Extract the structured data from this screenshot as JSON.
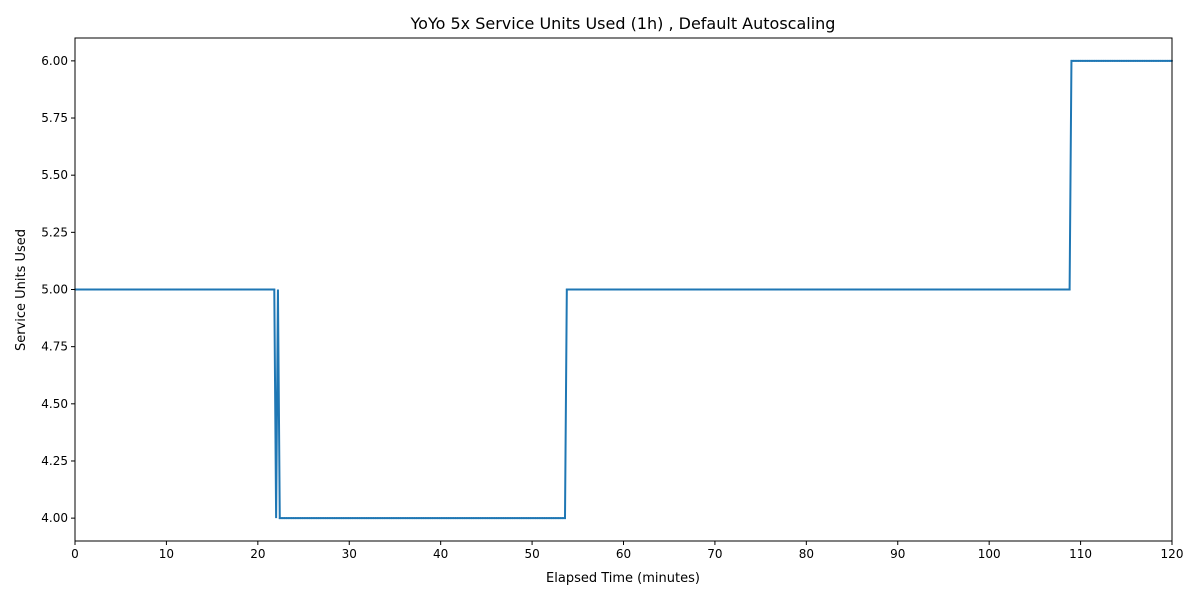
{
  "chart_data": {
    "type": "line",
    "title": "YoYo 5x Service Units Used (1h) , Default Autoscaling",
    "xlabel": "Elapsed Time (minutes)",
    "ylabel": "Service Units Used",
    "xlim": [
      0,
      120
    ],
    "ylim": [
      3.9,
      6.1
    ],
    "xticks": [
      0,
      10,
      20,
      30,
      40,
      50,
      60,
      70,
      80,
      90,
      100,
      110,
      120
    ],
    "xtick_labels": [
      "0",
      "10",
      "20",
      "30",
      "40",
      "50",
      "60",
      "70",
      "80",
      "90",
      "100",
      "110",
      "120"
    ],
    "yticks": [
      4.0,
      4.25,
      4.5,
      4.75,
      5.0,
      5.25,
      5.5,
      5.75,
      6.0
    ],
    "ytick_labels": [
      "4.00",
      "4.25",
      "4.50",
      "4.75",
      "5.00",
      "5.25",
      "5.50",
      "5.75",
      "6.00"
    ],
    "grid": false,
    "series": [
      {
        "color": "#1f77b4",
        "x": [
          0,
          21.8,
          22.0,
          22.2,
          22.4,
          53.6,
          53.8,
          108.8,
          109.0,
          120
        ],
        "y": [
          5,
          5,
          4,
          5,
          4,
          4,
          5,
          5,
          6,
          6
        ]
      }
    ]
  }
}
